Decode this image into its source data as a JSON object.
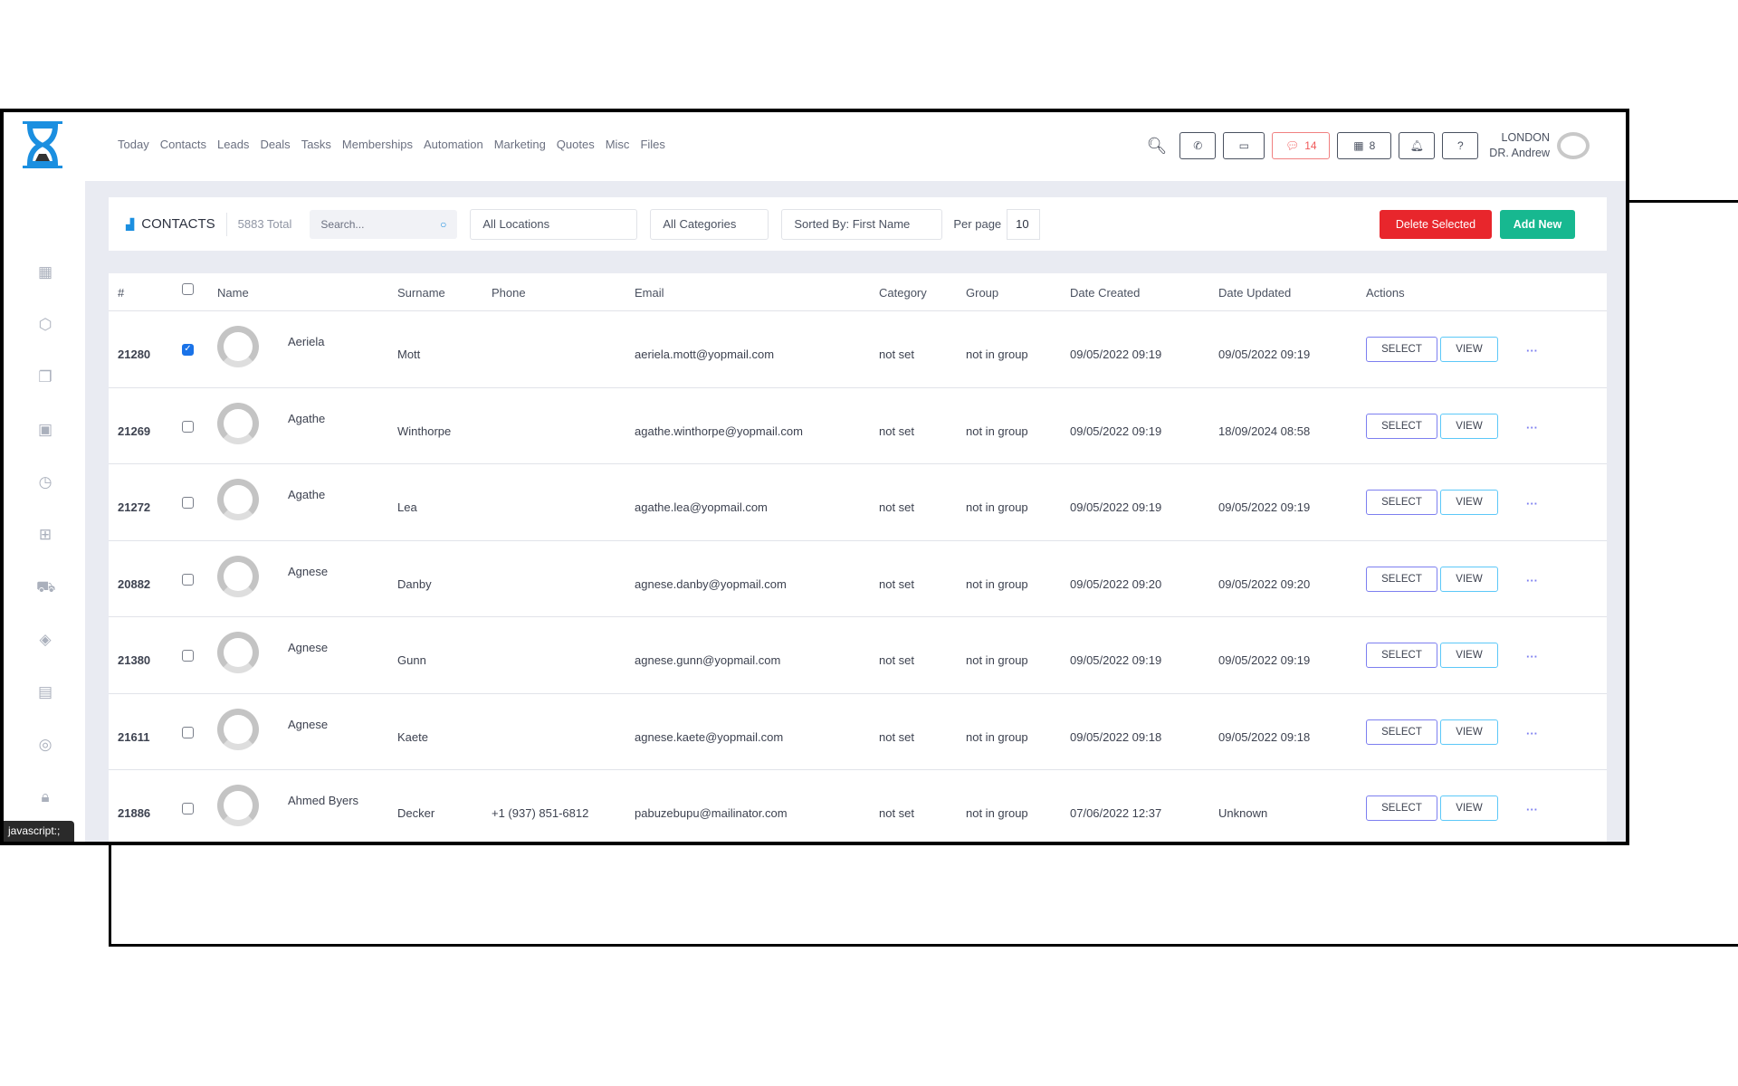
{
  "nav": [
    "Today",
    "Contacts",
    "Leads",
    "Deals",
    "Tasks",
    "Memberships",
    "Automation",
    "Marketing",
    "Quotes",
    "Misc",
    "Files"
  ],
  "header": {
    "chat_count": "14",
    "store_count": "8",
    "location": "LONDON",
    "user": "DR. Andrew",
    "icons": [
      "search-icon",
      "phone-icon",
      "inbox-icon",
      "chat-icon",
      "store-icon",
      "bell-icon",
      "help-icon"
    ]
  },
  "sidebar": [
    "calendar-icon",
    "box-icon",
    "copy-icon",
    "package-icon",
    "history-icon",
    "gift-icon",
    "cart-icon",
    "tag-icon",
    "report-icon",
    "user-circle-icon",
    "lock-icon"
  ],
  "toolbar": {
    "title": "CONTACTS",
    "total": "5883 Total",
    "search_placeholder": "Search...",
    "locations": "All Locations",
    "categories": "All Categories",
    "sort": "Sorted By: First Name",
    "per_page_label": "Per page",
    "per_page": "10",
    "delete": "Delete Selected",
    "add": "Add New"
  },
  "colors": {
    "delete": "#e8262c",
    "add": "#17b890",
    "select": "#5458d8",
    "view": "#2aa6ea"
  },
  "table": {
    "headers": [
      "#",
      "Name",
      "Surname",
      "Phone",
      "Email",
      "Category",
      "Group",
      "Date Created",
      "Date Updated",
      "Actions"
    ],
    "select_label": "SELECT",
    "view_label": "VIEW",
    "more": "···",
    "rows": [
      {
        "id": "21280",
        "checked": true,
        "name": "Aeriela",
        "surname": "Mott",
        "phone": "",
        "email": "aeriela.mott@yopmail.com",
        "category": "not set",
        "group": "not in group",
        "created": "09/05/2022 09:19",
        "updated": "09/05/2022 09:19"
      },
      {
        "id": "21269",
        "checked": false,
        "name": "Agathe",
        "surname": "Winthorpe",
        "phone": "",
        "email": "agathe.winthorpe@yopmail.com",
        "category": "not set",
        "group": "not in group",
        "created": "09/05/2022 09:19",
        "updated": "18/09/2024 08:58"
      },
      {
        "id": "21272",
        "checked": false,
        "name": "Agathe",
        "surname": "Lea",
        "phone": "",
        "email": "agathe.lea@yopmail.com",
        "category": "not set",
        "group": "not in group",
        "created": "09/05/2022 09:19",
        "updated": "09/05/2022 09:19"
      },
      {
        "id": "20882",
        "checked": false,
        "name": "Agnese",
        "surname": "Danby",
        "phone": "",
        "email": "agnese.danby@yopmail.com",
        "category": "not set",
        "group": "not in group",
        "created": "09/05/2022 09:20",
        "updated": "09/05/2022 09:20"
      },
      {
        "id": "21380",
        "checked": false,
        "name": "Agnese",
        "surname": "Gunn",
        "phone": "",
        "email": "agnese.gunn@yopmail.com",
        "category": "not set",
        "group": "not in group",
        "created": "09/05/2022 09:19",
        "updated": "09/05/2022 09:19"
      },
      {
        "id": "21611",
        "checked": false,
        "name": "Agnese",
        "surname": "Kaete",
        "phone": "",
        "email": "agnese.kaete@yopmail.com",
        "category": "not set",
        "group": "not in group",
        "created": "09/05/2022 09:18",
        "updated": "09/05/2022 09:18"
      },
      {
        "id": "21886",
        "checked": false,
        "name": "Ahmed Byers",
        "surname": "Decker",
        "phone": "+1 (937) 851-6812",
        "email": "pabuzebupu@mailinator.com",
        "category": "not set",
        "group": "not in group",
        "created": "07/06/2022 12:37",
        "updated": "Unknown"
      }
    ]
  },
  "status_bar": "javascript:;"
}
